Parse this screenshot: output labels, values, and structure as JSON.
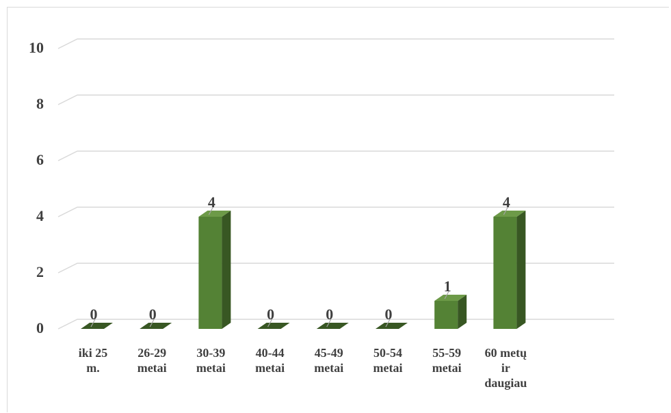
{
  "chart_data": {
    "type": "bar",
    "style": "3d-column",
    "categories": [
      [
        "iki 25",
        "m."
      ],
      [
        "26-29",
        "metai"
      ],
      [
        "30-39",
        "metai"
      ],
      [
        "40-44",
        "metai"
      ],
      [
        "45-49",
        "metai"
      ],
      [
        "50-54",
        "metai"
      ],
      [
        "55-59",
        "metai"
      ],
      [
        "60 metų",
        "ir",
        "daugiau"
      ]
    ],
    "values": [
      0,
      0,
      4,
      0,
      0,
      0,
      1,
      4
    ],
    "data_labels": [
      "0",
      "0",
      "4",
      "0",
      "0",
      "0",
      "1",
      "4"
    ],
    "yticks": [
      "0",
      "2",
      "4",
      "6",
      "8",
      "10"
    ],
    "ylim": [
      0,
      10
    ],
    "grid": true,
    "legend": "none",
    "title": "",
    "xlabel": "",
    "ylabel": "",
    "colors": {
      "front": "#548235",
      "side": "#385723",
      "top": "#6d9a48",
      "grid": "#d9d9d9",
      "text": "#404040"
    }
  }
}
